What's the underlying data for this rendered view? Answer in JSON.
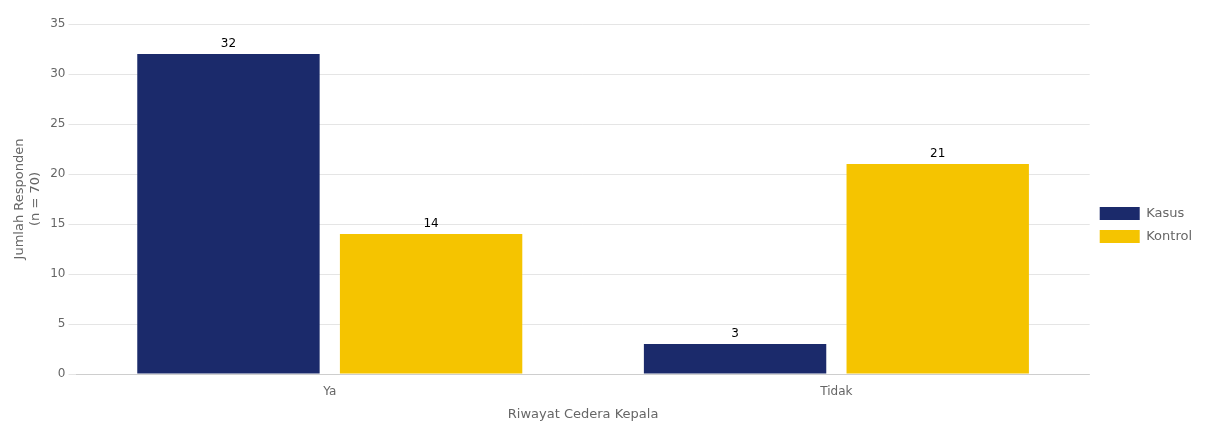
{
  "chart_data": {
    "type": "bar",
    "categories": [
      "Ya",
      "Tidak"
    ],
    "series": [
      {
        "name": "Kasus",
        "color": "#1B2A6B",
        "values": [
          32,
          3
        ]
      },
      {
        "name": "Kontrol",
        "color": "#F5C400",
        "values": [
          14,
          21
        ]
      }
    ],
    "ylabel": "Jumlah Responden\n(n = 70)",
    "xlabel": "Riwayat Cedera Kepala",
    "ylim": [
      0,
      35
    ],
    "yticks": [
      0,
      5,
      10,
      15,
      20,
      25,
      30,
      35
    ],
    "grid": true,
    "legend": "right",
    "data_labels": true
  }
}
